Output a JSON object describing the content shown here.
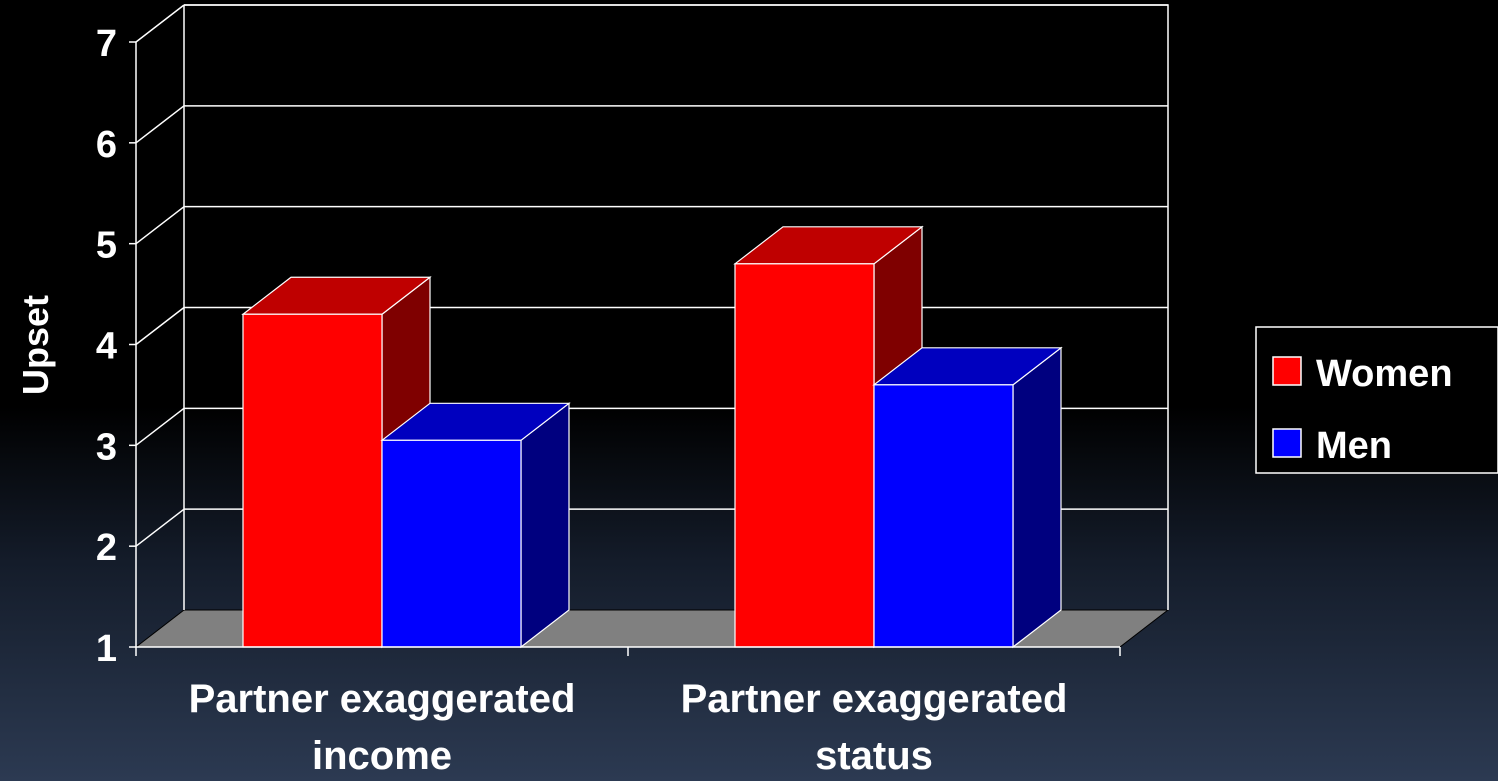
{
  "chart_data": {
    "type": "bar",
    "ylabel": "Upset",
    "xlabel": "",
    "ylim": [
      1,
      7
    ],
    "yticks": [
      1,
      2,
      3,
      4,
      5,
      6,
      7
    ],
    "categories": [
      [
        "Partner exaggerated",
        "income"
      ],
      [
        "Partner exaggerated",
        "status"
      ]
    ],
    "series": [
      {
        "name": "Women",
        "values": [
          4.3,
          4.8
        ],
        "color": "#ff0000",
        "side_color": "#7f0000",
        "top_color": "#bf0000"
      },
      {
        "name": "Men",
        "values": [
          3.05,
          3.6
        ],
        "color": "#0000ff",
        "side_color": "#00007f",
        "top_color": "#0000bf"
      }
    ],
    "grid": true,
    "legend_position": "right",
    "floor_color": "#808080",
    "three_d": true
  }
}
